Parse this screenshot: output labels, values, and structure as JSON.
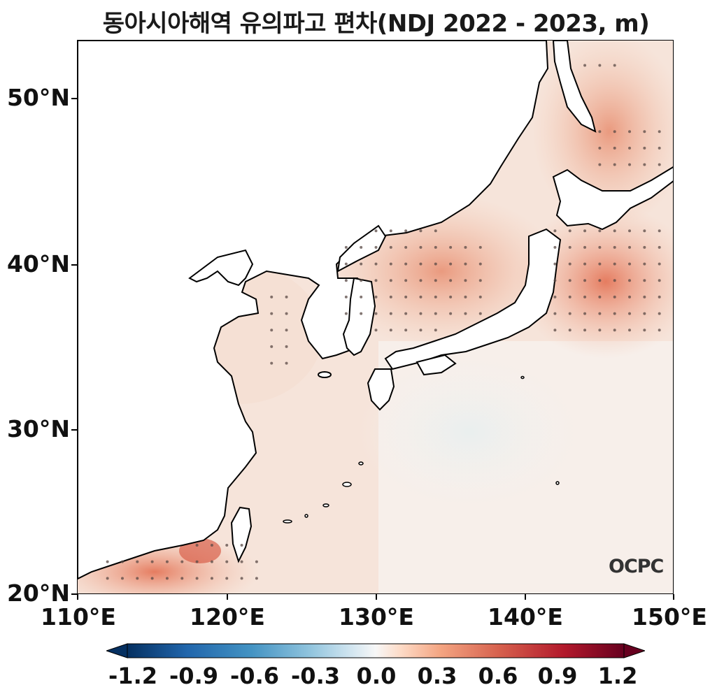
{
  "title": "동아시아해역 유의파고 편차(NDJ 2022 - 2023, m)",
  "axes": {
    "y_ticks": [
      "50°N",
      "40°N",
      "30°N",
      "20°N"
    ],
    "x_ticks": [
      "110°E",
      "120°E",
      "130°E",
      "140°E",
      "150°E"
    ],
    "lon_range": [
      110,
      150
    ],
    "lat_range": [
      20,
      53.5
    ]
  },
  "colorbar": {
    "labels": [
      "-1.2",
      "-0.9",
      "-0.6",
      "-0.3",
      "0.0",
      "0.3",
      "0.6",
      "0.9",
      "1.2"
    ],
    "min": -1.2,
    "max": 1.2,
    "colormap": "RdBu_r",
    "extend": "both"
  },
  "logo": "OCPC",
  "colors": {
    "low": "#053061",
    "mid": "#f7f7f7",
    "high": "#67001f",
    "land": "#ffffff",
    "coast": "#000000",
    "stipple": "#555555"
  }
}
